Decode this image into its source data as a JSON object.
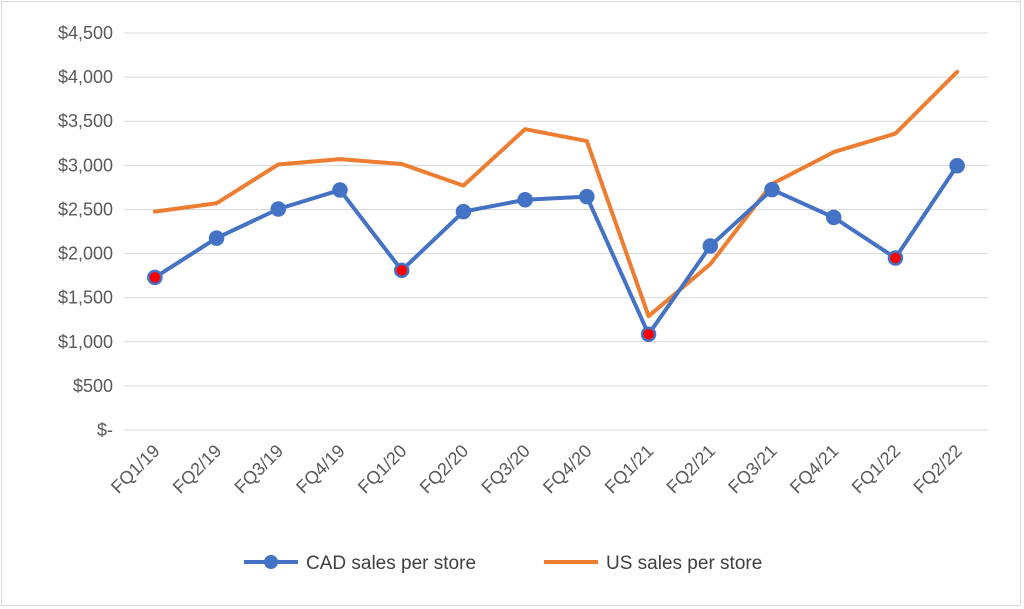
{
  "chart_data": {
    "type": "line",
    "categories": [
      "FQ1/19",
      "FQ2/19",
      "FQ3/19",
      "FQ4/19",
      "FQ1/20",
      "FQ2/20",
      "FQ3/20",
      "FQ4/20",
      "FQ1/21",
      "FQ2/21",
      "FQ3/21",
      "FQ4/21",
      "FQ1/22",
      "FQ2/22"
    ],
    "ylim": [
      0,
      4500
    ],
    "ytick_values": [
      0,
      500,
      1000,
      1500,
      2000,
      2500,
      3000,
      3500,
      4000,
      4500
    ],
    "ytick_labels": [
      "$-",
      "$500",
      "$1,000",
      "$1,500",
      "$2,000",
      "$2,500",
      "$3,000",
      "$3,500",
      "$4,000",
      "$4,500"
    ],
    "grid": "horizontal",
    "legend_position": "bottom",
    "series": [
      {
        "name": "CAD sales per store",
        "color": "#4472c4",
        "marker": "circle",
        "highlight_color": "#ff0000",
        "highlighted_points": [
          0,
          4,
          8,
          12
        ],
        "values": [
          1730,
          2175,
          2505,
          2720,
          1810,
          2475,
          2610,
          2645,
          1085,
          2085,
          2725,
          2410,
          1950,
          2995
        ]
      },
      {
        "name": "US sales per store",
        "color": "#ed7d31",
        "marker": "none",
        "values": [
          2475,
          2570,
          3010,
          3070,
          3015,
          2770,
          3410,
          3275,
          1290,
          1880,
          2790,
          3150,
          3360,
          4060
        ]
      }
    ]
  }
}
